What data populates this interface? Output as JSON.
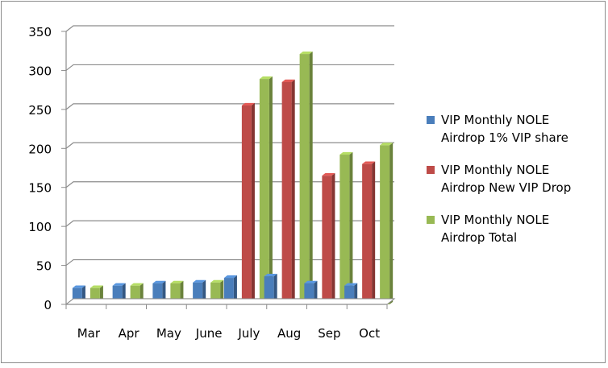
{
  "chart_data": {
    "type": "bar",
    "title": "",
    "xlabel": "",
    "ylabel": "",
    "categories": [
      "Mar",
      "Apr",
      "May",
      "June",
      "July",
      "Aug",
      "Sep",
      "Oct"
    ],
    "ylim": [
      0,
      350
    ],
    "yticks": [
      0,
      50,
      100,
      150,
      200,
      250,
      300,
      350
    ],
    "grid": true,
    "legend_position": "right",
    "series": [
      {
        "name": "VIP Monthly NOLE Airdrop 1% VIP share",
        "name_lines": [
          "VIP Monthly NOLE",
          "Airdrop 1% VIP share"
        ],
        "color": "#4a7ebb",
        "values": [
          21,
          24,
          27,
          28,
          34,
          36,
          27,
          24
        ]
      },
      {
        "name": "VIP Monthly NOLE Airdrop New VIP Drop",
        "name_lines": [
          "VIP Monthly NOLE",
          "Airdrop New VIP Drop"
        ],
        "color": "#be4b48",
        "values": [
          0,
          0,
          0,
          0,
          255,
          285,
          165,
          180
        ]
      },
      {
        "name": "VIP Monthly NOLE Airdrop Total",
        "name_lines": [
          "VIP Monthly NOLE",
          "Airdrop Total"
        ],
        "color": "#98b954",
        "values": [
          21,
          24,
          27,
          28,
          289,
          321,
          192,
          204
        ]
      }
    ]
  }
}
